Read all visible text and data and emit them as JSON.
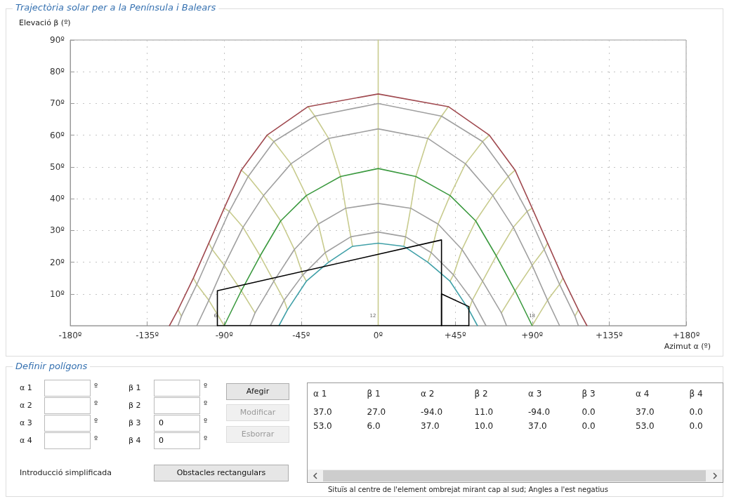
{
  "chart_data": [
    {
      "type": "line",
      "title": "Trajectòria solar per a la Península i Balears",
      "xlabel": "Azimut α (º)",
      "ylabel": "Elevació β (º)",
      "xlim": [
        -180,
        180
      ],
      "xticks": [
        {
          "value": -180,
          "label": "-180º"
        },
        {
          "value": -135,
          "label": "-135º"
        },
        {
          "value": -90,
          "label": "-90º"
        },
        {
          "value": -45,
          "label": "-45º"
        },
        {
          "value": 0,
          "label": "0º"
        },
        {
          "value": 45,
          "label": "+45º"
        },
        {
          "value": 90,
          "label": "+90º"
        },
        {
          "value": 135,
          "label": "+135º"
        },
        {
          "value": 180,
          "label": "+180º"
        }
      ],
      "ylim": [
        0,
        90
      ],
      "yticks": [
        {
          "value": 0,
          "label": null
        },
        {
          "value": 10,
          "label": "10º"
        },
        {
          "value": 20,
          "label": "20º"
        },
        {
          "value": 30,
          "label": "30º"
        },
        {
          "value": 40,
          "label": "40º"
        },
        {
          "value": 50,
          "label": "50º"
        },
        {
          "value": 60,
          "label": "60º"
        },
        {
          "value": 70,
          "label": "70º"
        },
        {
          "value": 80,
          "label": "80º"
        },
        {
          "value": 90,
          "label": "90º"
        }
      ],
      "grid": true,
      "marker": "none",
      "line_style": "solid",
      "series": [
        {
          "color": "#c8cb8e",
          "x": [
            0,
            0
          ],
          "values": [
            0,
            90
          ]
        },
        {
          "color": "#c8cb8e",
          "x": [
            41,
            37,
            29,
            22,
            19,
            16,
            15
          ],
          "values": [
            69,
            66,
            59,
            47,
            37,
            28,
            25
          ]
        },
        {
          "color": "#c8cb8e",
          "x": [
            65,
            61,
            51,
            42,
            35,
            31,
            29
          ],
          "values": [
            60,
            58,
            51,
            41,
            32,
            23,
            20
          ]
        },
        {
          "color": "#c8cb8e",
          "x": [
            80,
            76,
            67,
            57,
            49,
            44,
            42
          ],
          "values": [
            49,
            47,
            41,
            33,
            24,
            16,
            14
          ]
        },
        {
          "color": "#c8cb8e",
          "x": [
            90,
            87,
            79,
            69,
            61,
            55,
            53
          ],
          "values": [
            37,
            36,
            31,
            22,
            14,
            8,
            5
          ]
        },
        {
          "color": "#c8cb8e",
          "x": [
            99,
            97,
            90,
            80,
            72
          ],
          "values": [
            26,
            24,
            19,
            11,
            4
          ]
        },
        {
          "color": "#c8cb8e",
          "x": [
            108,
            106,
            99,
            90
          ],
          "values": [
            15,
            13,
            8,
            0
          ]
        },
        {
          "color": "#c8cb8e",
          "x": [
            117,
            115
          ],
          "values": [
            5,
            3
          ]
        },
        {
          "color": "#c8cb8e",
          "x": [
            -41,
            -37,
            -29,
            -22,
            -19,
            -16,
            -15
          ],
          "values": [
            69,
            66,
            59,
            47,
            37,
            28,
            25
          ]
        },
        {
          "color": "#c8cb8e",
          "x": [
            -65,
            -61,
            -51,
            -42,
            -35,
            -31,
            -29
          ],
          "values": [
            60,
            58,
            51,
            41,
            32,
            23,
            20
          ]
        },
        {
          "color": "#c8cb8e",
          "x": [
            -80,
            -76,
            -67,
            -57,
            -49,
            -44,
            -42
          ],
          "values": [
            49,
            47,
            41,
            33,
            24,
            16,
            14
          ]
        },
        {
          "color": "#c8cb8e",
          "x": [
            -90,
            -87,
            -79,
            -69,
            -61,
            -55,
            -53
          ],
          "values": [
            37,
            36,
            31,
            22,
            14,
            8,
            5
          ]
        },
        {
          "color": "#c8cb8e",
          "x": [
            -99,
            -97,
            -90,
            -80,
            -72
          ],
          "values": [
            26,
            24,
            19,
            11,
            4
          ]
        },
        {
          "color": "#c8cb8e",
          "x": [
            -108,
            -106,
            -99,
            -90
          ],
          "values": [
            15,
            13,
            8,
            0
          ]
        },
        {
          "color": "#c8cb8e",
          "x": [
            -117,
            -115
          ],
          "values": [
            5,
            3
          ]
        },
        {
          "color": "#a04a50",
          "x": [
            -122,
            -117,
            -108,
            -99,
            -90,
            -80,
            -65,
            -41,
            0,
            41,
            65,
            80,
            90,
            99,
            108,
            117,
            122
          ],
          "values": [
            0,
            5,
            15,
            26,
            37,
            49,
            60,
            69,
            73,
            69,
            60,
            49,
            37,
            26,
            15,
            5,
            0
          ]
        },
        {
          "color": "#a0a0a0",
          "x": [
            -117,
            -115,
            -106,
            -97,
            -87,
            -76,
            -61,
            -37,
            0,
            37,
            61,
            76,
            87,
            97,
            106,
            115,
            117
          ],
          "values": [
            0,
            3,
            13,
            24,
            36,
            47,
            58,
            66,
            70,
            66,
            58,
            47,
            36,
            24,
            13,
            3,
            0
          ]
        },
        {
          "color": "#a0a0a0",
          "x": [
            -106,
            -99,
            -90,
            -79,
            -67,
            -51,
            -29,
            0,
            29,
            51,
            67,
            79,
            90,
            99,
            106
          ],
          "values": [
            0,
            8,
            19,
            31,
            41,
            51,
            59,
            62,
            59,
            51,
            41,
            31,
            19,
            8,
            0
          ]
        },
        {
          "color": "#3c9a40",
          "x": [
            -90,
            -80,
            -69,
            -57,
            -42,
            -22,
            0,
            22,
            42,
            57,
            69,
            80,
            90
          ],
          "values": [
            0,
            11,
            22,
            33,
            41,
            47,
            49.5,
            47,
            41,
            33,
            22,
            11,
            0
          ]
        },
        {
          "color": "#a0a0a0",
          "x": [
            -75,
            -72,
            -61,
            -49,
            -35,
            -19,
            0,
            19,
            35,
            49,
            61,
            72,
            75
          ],
          "values": [
            0,
            4,
            14,
            24,
            32,
            37,
            38.5,
            37,
            32,
            24,
            14,
            4,
            0
          ]
        },
        {
          "color": "#a0a0a0",
          "x": [
            -63,
            -55,
            -44,
            -31,
            -16,
            0,
            16,
            31,
            44,
            55,
            63
          ],
          "values": [
            0,
            8,
            16,
            23,
            28,
            29.5,
            28,
            23,
            16,
            8,
            0
          ]
        },
        {
          "color": "#40a0a8",
          "x": [
            -58,
            -53,
            -42,
            -29,
            -15,
            0,
            15,
            29,
            42,
            53,
            58
          ],
          "values": [
            0,
            5,
            14,
            20,
            25,
            26,
            25,
            20,
            14,
            5,
            0
          ]
        },
        {
          "color": "#000000",
          "x": [
            -94,
            -94,
            37,
            37
          ],
          "values": [
            0,
            11,
            27,
            0
          ]
        },
        {
          "color": "#000000",
          "x": [
            -94,
            37,
            53
          ],
          "values": [
            0,
            0,
            0
          ]
        },
        {
          "color": "#000000",
          "x": [
            37,
            37,
            53,
            53
          ],
          "values": [
            0,
            10,
            6,
            0
          ]
        }
      ],
      "annotations": [
        {
          "text": "6",
          "x": -93,
          "y": 3
        },
        {
          "text": "12",
          "x": 0,
          "y": 3
        },
        {
          "text": "18",
          "x": 93,
          "y": 3
        }
      ]
    },
    {
      "type": "other",
      "title": "Definir polígons",
      "categories": [
        "α 1",
        "β 1",
        "α 2",
        "β 2",
        "α 3",
        "β 3",
        "α 4",
        "β 4"
      ],
      "cell_labels": [
        [
          "37.0",
          "27.0",
          "-94.0",
          "11.0",
          "-94.0",
          "0.0",
          "37.0",
          "0.0"
        ],
        [
          "53.0",
          "6.0",
          "37.0",
          "10.0",
          "37.0",
          "0.0",
          "53.0",
          "0.0"
        ]
      ],
      "annotations": [
        "α 1",
        "α 2",
        "α 3",
        "α 4",
        "β 1",
        "β 2",
        "β 3",
        "β 4",
        "º",
        "0",
        "0",
        "Afegir",
        "Modificar",
        "Esborrar",
        "Introducció simplificada",
        "Obstacles rectangulars",
        "Situïs al centre de l'element ombrejat mirant cap al sud; Angles a l'est negatius"
      ]
    }
  ]
}
